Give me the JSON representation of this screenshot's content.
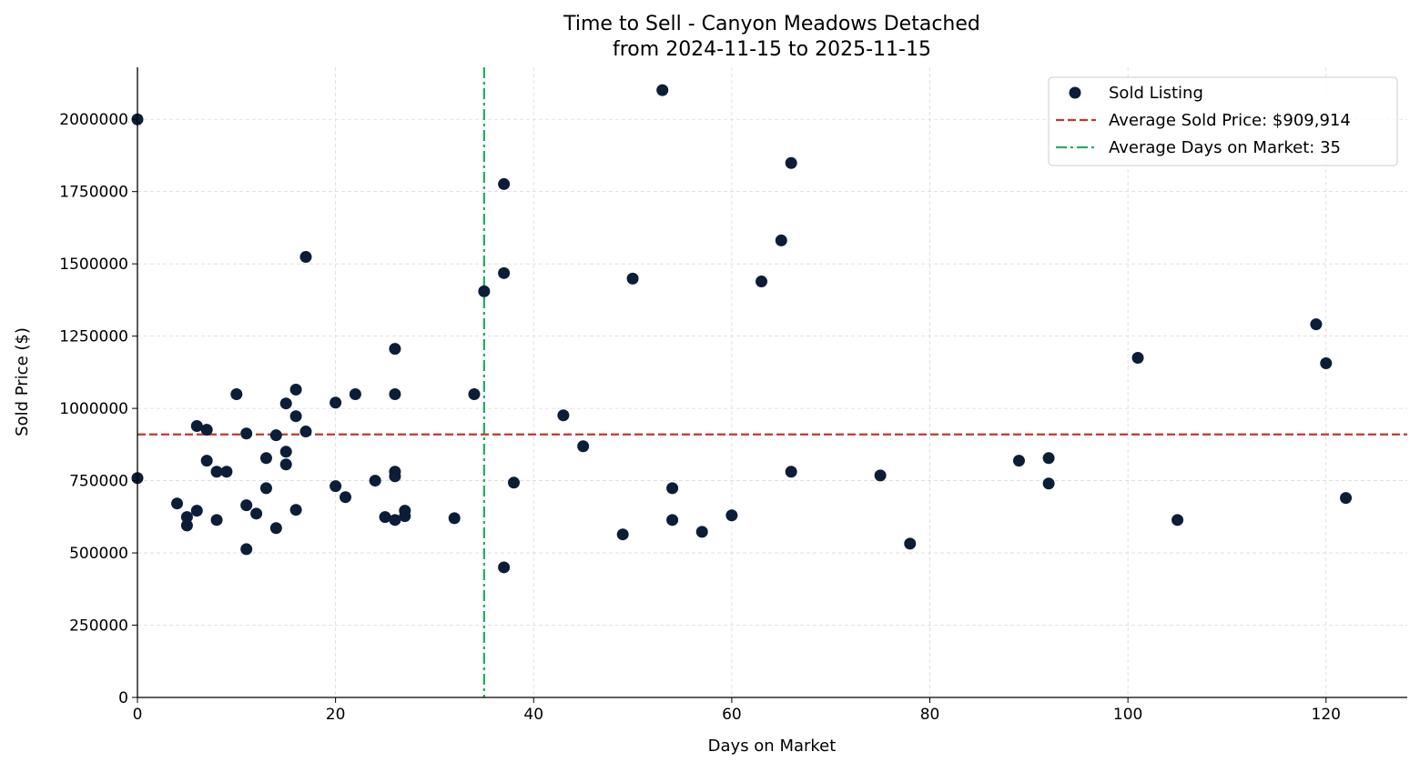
{
  "chart_data": {
    "type": "scatter",
    "title": "Time to Sell - Canyon Meadows Detached",
    "subtitle": "from 2024-11-15 to 2025-11-15",
    "xlabel": "Days on Market",
    "ylabel": "Sold Price ($)",
    "xlim": [
      0,
      128.2
    ],
    "ylim": [
      0,
      2180000
    ],
    "xticks": [
      0,
      20,
      40,
      60,
      80,
      100,
      120
    ],
    "yticks": [
      0,
      250000,
      500000,
      750000,
      1000000,
      1250000,
      1500000,
      1750000,
      2000000
    ],
    "grid": true,
    "legend_placement": "top-right",
    "colors": {
      "points": "#0b1d38",
      "avg_price": "#c0392b",
      "avg_days": "#27ae60",
      "grid": "#d9d9d9"
    },
    "series": [
      {
        "name": "Sold Listing",
        "points": [
          [
            0,
            2000000
          ],
          [
            0,
            759000
          ],
          [
            4,
            671000
          ],
          [
            5,
            624000
          ],
          [
            5,
            595000
          ],
          [
            6,
            939000
          ],
          [
            6,
            646000
          ],
          [
            7,
            926000
          ],
          [
            7,
            819000
          ],
          [
            8,
            781000
          ],
          [
            8,
            614000
          ],
          [
            9,
            781000
          ],
          [
            10,
            1049000
          ],
          [
            11,
            913000
          ],
          [
            11,
            665000
          ],
          [
            11,
            513000
          ],
          [
            12,
            636000
          ],
          [
            13,
            828000
          ],
          [
            13,
            724000
          ],
          [
            14,
            907000
          ],
          [
            14,
            586000
          ],
          [
            15,
            1017000
          ],
          [
            15,
            850000
          ],
          [
            15,
            806000
          ],
          [
            16,
            1065000
          ],
          [
            16,
            973000
          ],
          [
            16,
            649000
          ],
          [
            17,
            1524000
          ],
          [
            17,
            920000
          ],
          [
            20,
            1020000
          ],
          [
            20,
            731000
          ],
          [
            21,
            693000
          ],
          [
            22,
            1049000
          ],
          [
            24,
            750000
          ],
          [
            25,
            624000
          ],
          [
            26,
            1206000
          ],
          [
            26,
            1049000
          ],
          [
            26,
            781000
          ],
          [
            26,
            765000
          ],
          [
            26,
            614000
          ],
          [
            27,
            646000
          ],
          [
            27,
            627000
          ],
          [
            32,
            620000
          ],
          [
            34,
            1049000
          ],
          [
            35,
            1405000
          ],
          [
            37,
            1776000
          ],
          [
            37,
            1468000
          ],
          [
            37,
            450000
          ],
          [
            38,
            743000
          ],
          [
            43,
            976000
          ],
          [
            45,
            869000
          ],
          [
            49,
            564000
          ],
          [
            50,
            1449000
          ],
          [
            53,
            2101000
          ],
          [
            54,
            724000
          ],
          [
            54,
            614000
          ],
          [
            57,
            573000
          ],
          [
            60,
            630000
          ],
          [
            63,
            1439000
          ],
          [
            65,
            1581000
          ],
          [
            66,
            1849000
          ],
          [
            66,
            781000
          ],
          [
            75,
            768000
          ],
          [
            78,
            532000
          ],
          [
            89,
            819000
          ],
          [
            92,
            828000
          ],
          [
            92,
            740000
          ],
          [
            101,
            1175000
          ],
          [
            105,
            614000
          ],
          [
            119,
            1291000
          ],
          [
            120,
            1156000
          ],
          [
            122,
            690000
          ]
        ]
      }
    ],
    "reference_lines": [
      {
        "name": "Average Sold Price: $909,914",
        "orientation": "horizontal",
        "value": 909914,
        "style": "dashed"
      },
      {
        "name": "Average Days on Market: 35",
        "orientation": "vertical",
        "value": 35,
        "style": "dashdot"
      }
    ]
  }
}
